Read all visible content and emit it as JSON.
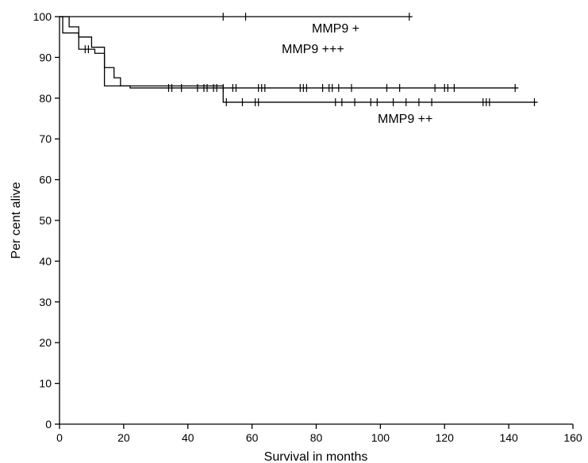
{
  "chart_data": {
    "type": "line",
    "xlabel": "Survival in months",
    "ylabel": "Per cent alive",
    "xlim": [
      0,
      160
    ],
    "ylim": [
      0,
      100
    ],
    "xticks": [
      0,
      20,
      40,
      60,
      80,
      100,
      120,
      140,
      160
    ],
    "yticks": [
      0,
      10,
      20,
      30,
      40,
      50,
      60,
      70,
      80,
      90,
      100
    ],
    "grid": false,
    "legend": "none",
    "series": [
      {
        "name": "MMP9 +",
        "steps": [
          [
            0,
            100
          ],
          [
            110,
            100
          ]
        ],
        "censored": [
          51,
          58,
          109
        ]
      },
      {
        "name": "MMP9 +++",
        "steps": [
          [
            0,
            100
          ],
          [
            3,
            97.5
          ],
          [
            6,
            95
          ],
          [
            10,
            92.5
          ],
          [
            14,
            87.5
          ],
          [
            17,
            85
          ],
          [
            19,
            83
          ],
          [
            22,
            82.5
          ],
          [
            143,
            82.5
          ]
        ],
        "censored": [
          34,
          35,
          38,
          43,
          45,
          46,
          48,
          49,
          51,
          54,
          55,
          62,
          63,
          64,
          75,
          76,
          77,
          82,
          84,
          85,
          87,
          91,
          102,
          106,
          117,
          120,
          121,
          123,
          142
        ]
      },
      {
        "name": "MMP9 ++",
        "steps": [
          [
            0,
            100
          ],
          [
            1,
            96
          ],
          [
            6,
            92
          ],
          [
            11,
            91
          ],
          [
            14,
            83
          ],
          [
            21,
            83
          ],
          [
            51,
            83
          ],
          [
            51,
            79
          ],
          [
            149,
            79
          ]
        ],
        "censored": [
          8,
          9,
          52,
          57,
          61,
          62,
          86,
          88,
          92,
          97,
          99,
          104,
          108,
          112,
          116,
          132,
          133,
          134,
          148
        ]
      }
    ]
  }
}
